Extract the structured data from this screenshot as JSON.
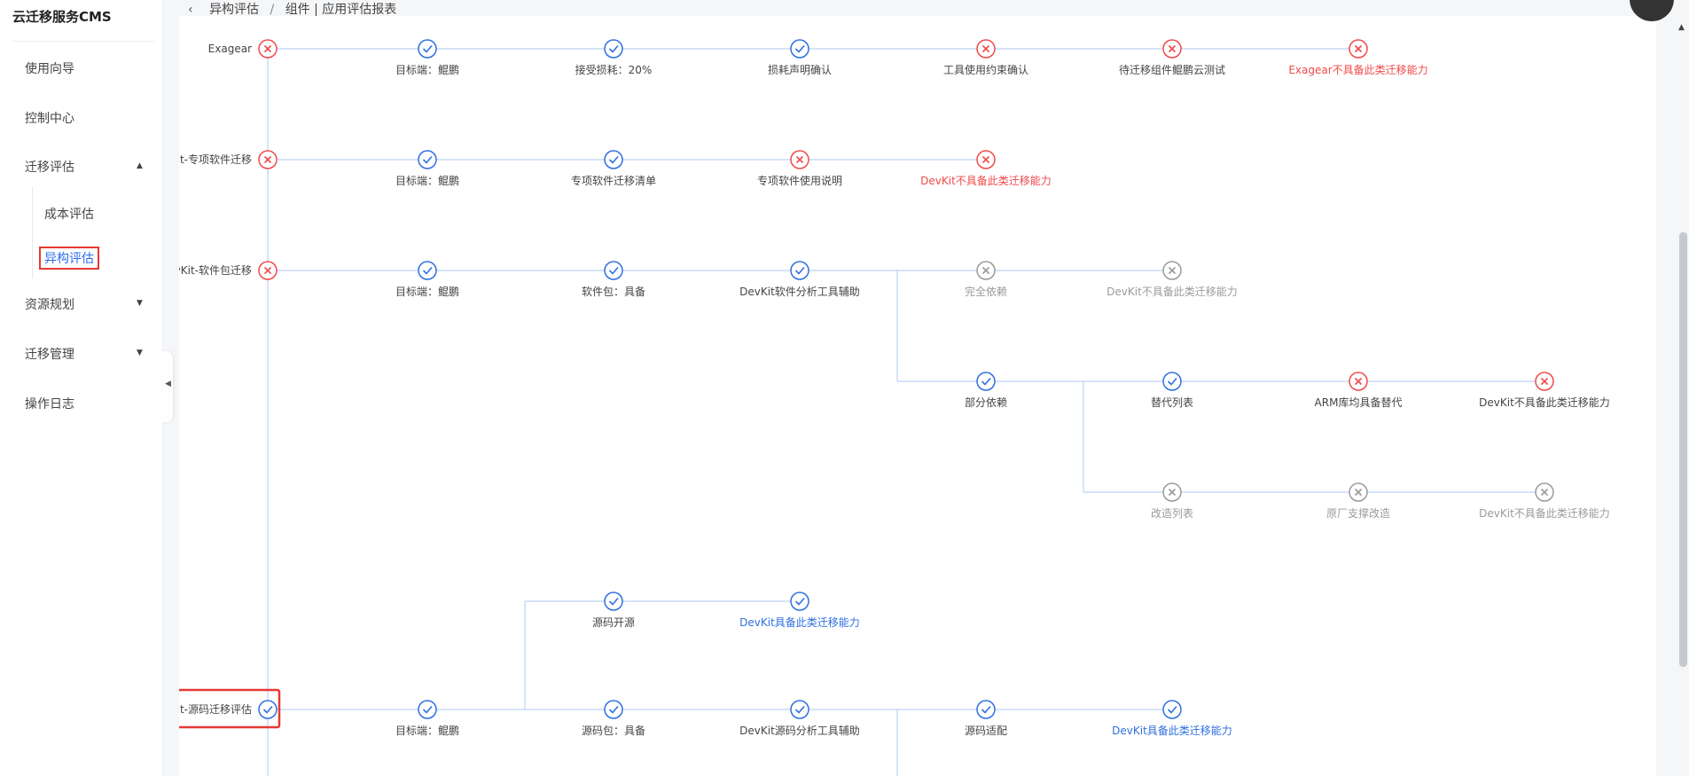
{
  "app": {
    "title": "云迁移服务CMS"
  },
  "sidebar": {
    "items": [
      {
        "label": "使用向导"
      },
      {
        "label": "控制中心"
      },
      {
        "label": "迁移评估",
        "caret": "▲"
      },
      {
        "label": "资源规划",
        "caret": "▼"
      },
      {
        "label": "迁移管理",
        "caret": "▼"
      },
      {
        "label": "操作日志"
      }
    ],
    "sub_items": [
      {
        "label": "成本评估"
      },
      {
        "label": "异构评估"
      }
    ],
    "collapse_icon": "◀"
  },
  "breadcrumb": {
    "back_icon": "‹",
    "parts": [
      "异构评估",
      "/",
      "组件 | 应用评估报表"
    ]
  },
  "colors": {
    "success": "#2f6fe0",
    "fail": "#f04a4a",
    "disabled": "#9a9a9a",
    "line": "#bcd3f5",
    "highlight": "#e53935"
  },
  "flow": {
    "rows": [
      {
        "root": {
          "label": "Exagear",
          "status": "fail"
        },
        "nodes": [
          {
            "label": "目标端：鲲鹏",
            "status": "success",
            "text": "normal"
          },
          {
            "label": "接受损耗：20%",
            "status": "success",
            "text": "normal"
          },
          {
            "label": "损耗声明确认",
            "status": "success",
            "text": "normal"
          },
          {
            "label": "工具使用约束确认",
            "status": "fail",
            "text": "normal"
          },
          {
            "label": "待迁移组件鲲鹏云测试",
            "status": "fail",
            "text": "normal"
          },
          {
            "label": "Exagear不具备此类迁移能力",
            "status": "fail",
            "text": "fail"
          }
        ]
      },
      {
        "root": {
          "label": "DevKit-专项软件迁移",
          "status": "fail"
        },
        "nodes": [
          {
            "label": "目标端：鲲鹏",
            "status": "success",
            "text": "normal"
          },
          {
            "label": "专项软件迁移清单",
            "status": "success",
            "text": "normal"
          },
          {
            "label": "专项软件使用说明",
            "status": "fail",
            "text": "normal"
          },
          {
            "label": "DevKit不具备此类迁移能力",
            "status": "fail",
            "text": "fail"
          }
        ]
      },
      {
        "root": {
          "label": "DevKit-软件包迁移",
          "status": "fail"
        },
        "nodes": [
          {
            "label": "目标端：鲲鹏",
            "status": "success",
            "text": "normal"
          },
          {
            "label": "软件包：具备",
            "status": "success",
            "text": "normal"
          },
          {
            "label": "DevKit软件分析工具辅助",
            "status": "success",
            "text": "normal"
          }
        ],
        "branch_a": [
          {
            "label": "完全依赖",
            "status": "disabled",
            "text": "disabled"
          },
          {
            "label": "DevKit不具备此类迁移能力",
            "status": "disabled",
            "text": "disabled"
          }
        ],
        "branch_b": [
          {
            "label": "部分依赖",
            "status": "success",
            "text": "normal"
          },
          {
            "label": "替代列表",
            "status": "success",
            "text": "normal"
          },
          {
            "label": "ARM库均具备替代",
            "status": "fail",
            "text": "normal"
          },
          {
            "label": "DevKit不具备此类迁移能力",
            "status": "fail",
            "text": "normal"
          }
        ],
        "branch_c": [
          {
            "label": "改造列表",
            "status": "disabled",
            "text": "disabled"
          },
          {
            "label": "原厂支撑改造",
            "status": "disabled",
            "text": "disabled"
          },
          {
            "label": "DevKit不具备此类迁移能力",
            "status": "disabled",
            "text": "disabled"
          }
        ]
      },
      {
        "root": {
          "label": "DevKit-源码迁移评估",
          "status": "success"
        },
        "upper": [
          {
            "label": "源码开源",
            "status": "success",
            "text": "normal"
          },
          {
            "label": "DevKit具备此类迁移能力",
            "status": "success",
            "text": "success"
          }
        ],
        "nodes": [
          {
            "label": "目标端：鲲鹏",
            "status": "success",
            "text": "normal"
          },
          {
            "label": "源码包：具备",
            "status": "success",
            "text": "normal"
          },
          {
            "label": "DevKit源码分析工具辅助",
            "status": "success",
            "text": "normal"
          },
          {
            "label": "源码适配",
            "status": "success",
            "text": "normal"
          },
          {
            "label": "DevKit具备此类迁移能力",
            "status": "success",
            "text": "success"
          }
        ]
      }
    ]
  },
  "scroll": {
    "up_icon": "▲"
  }
}
